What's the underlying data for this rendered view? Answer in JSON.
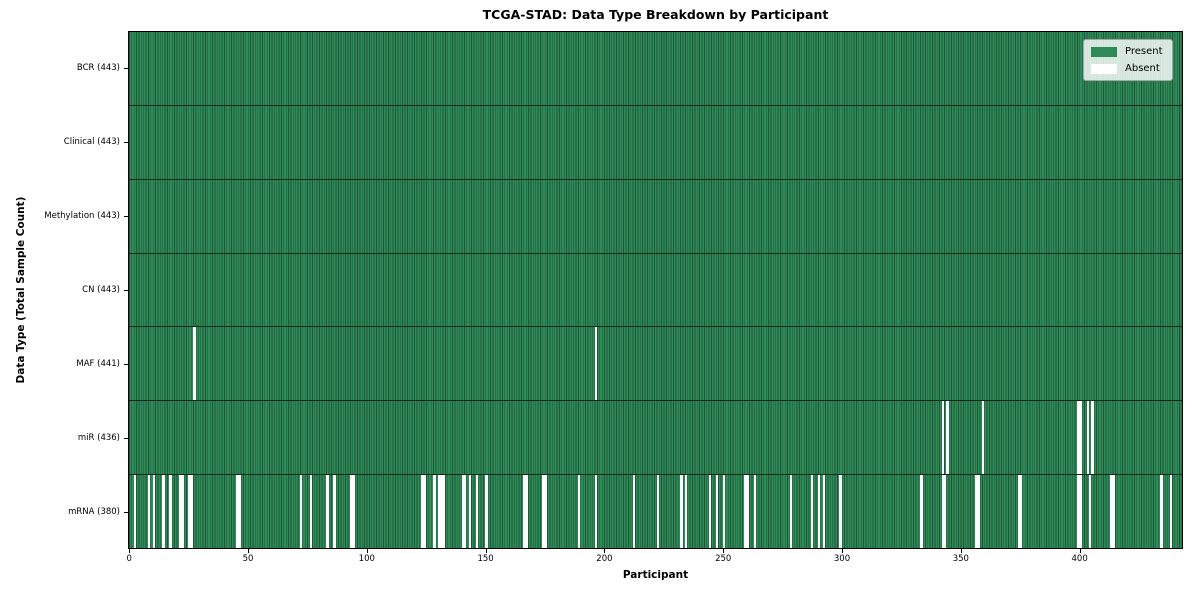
{
  "title": "TCGA-STAD: Data Type Breakdown by Participant",
  "axes": {
    "x_label": "Participant",
    "y_label": "Data Type (Total Sample Count)",
    "x_ticks": [
      0,
      50,
      100,
      150,
      200,
      250,
      300,
      350,
      400
    ]
  },
  "legend": {
    "entries": [
      {
        "label": "Present",
        "color": "#2e8b57"
      },
      {
        "label": "Absent",
        "color": "#ffffff"
      }
    ]
  },
  "colors": {
    "present_fill": "#2e8b57",
    "bar_edge": "#1d5737",
    "absent_fill": "#ffffff",
    "row_divider": "#0a140d",
    "axis": "#000000"
  },
  "chart_data": {
    "type": "heatmap",
    "title": "TCGA-STAD: Data Type Breakdown by Participant",
    "xlabel": "Participant",
    "ylabel": "Data Type (Total Sample Count)",
    "n_participants": 443,
    "x_range": [
      0,
      443
    ],
    "legend_entries": [
      "Present",
      "Absent"
    ],
    "legend_position": "upper right",
    "grid": false,
    "rows": [
      {
        "data_type": "BCR",
        "label": "BCR (443)",
        "present_count": 443,
        "absent_participants": []
      },
      {
        "data_type": "Clinical",
        "label": "Clinical (443)",
        "present_count": 443,
        "absent_participants": []
      },
      {
        "data_type": "Methylation",
        "label": "Methylation (443)",
        "present_count": 443,
        "absent_participants": []
      },
      {
        "data_type": "CN",
        "label": "CN (443)",
        "present_count": 443,
        "absent_participants": []
      },
      {
        "data_type": "MAF",
        "label": "MAF (441)",
        "present_count": 441,
        "absent_participants": [
          27,
          196
        ]
      },
      {
        "data_type": "miR",
        "label": "miR (436)",
        "present_count": 436,
        "absent_participants": [
          342,
          344,
          359,
          399,
          400,
          403,
          405
        ]
      },
      {
        "data_type": "mRNA",
        "label": "mRNA (380)",
        "present_count": 380,
        "absent_participants": [
          2,
          8,
          10,
          14,
          17,
          21,
          22,
          25,
          26,
          45,
          46,
          72,
          76,
          83,
          86,
          93,
          94,
          123,
          124,
          128,
          130,
          131,
          132,
          140,
          141,
          143,
          146,
          150,
          166,
          167,
          174,
          175,
          189,
          196,
          212,
          222,
          232,
          234,
          244,
          247,
          250,
          259,
          260,
          263,
          278,
          287,
          290,
          292,
          299,
          333,
          342,
          343,
          356,
          357,
          374,
          375,
          399,
          400,
          404,
          413,
          414,
          434,
          438
        ]
      }
    ]
  }
}
